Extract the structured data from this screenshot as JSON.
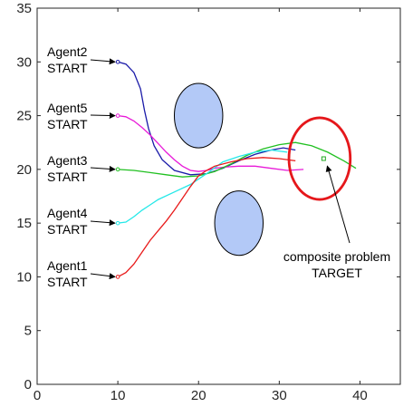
{
  "chart_data": {
    "type": "line",
    "title": "",
    "xlabel": "",
    "ylabel": "",
    "xlim": [
      0,
      45
    ],
    "ylim": [
      0,
      35
    ],
    "xticks": [
      0,
      10,
      20,
      30,
      40
    ],
    "yticks": [
      0,
      5,
      10,
      15,
      20,
      25,
      30,
      35
    ],
    "grid": false,
    "legend": "none",
    "obstacles": [
      {
        "cx": 20,
        "cy": 25,
        "rx": 3.0,
        "ry": 3.0,
        "color": "#b3c9f7"
      },
      {
        "cx": 25,
        "cy": 15,
        "rx": 3.0,
        "ry": 3.0,
        "color": "#b3c9f7"
      }
    ],
    "target_circle": {
      "cx": 35,
      "cy": 21,
      "rx": 3.8,
      "ry": 3.8,
      "color": "#e5171b"
    },
    "target_point": {
      "x": 35.5,
      "y": 21.0,
      "color": "#21a821"
    },
    "series": [
      {
        "color": "#1a1aa8",
        "points": [
          [
            10,
            30
          ],
          [
            11,
            29.8
          ],
          [
            12,
            29
          ],
          [
            12.8,
            27.5
          ],
          [
            13.3,
            25.5
          ],
          [
            13.8,
            23.8
          ],
          [
            14.5,
            22.2
          ],
          [
            15.5,
            20.9
          ],
          [
            17,
            19.9
          ],
          [
            19,
            19.5
          ],
          [
            21,
            19.6
          ],
          [
            23,
            20.1
          ],
          [
            25,
            20.8
          ],
          [
            27,
            21.4
          ],
          [
            29,
            21.8
          ],
          [
            30.5,
            22.0
          ],
          [
            32,
            21.8
          ]
        ]
      },
      {
        "color": "#e81ad8",
        "points": [
          [
            10,
            25
          ],
          [
            11,
            24.9
          ],
          [
            12,
            24.5
          ],
          [
            13,
            23.9
          ],
          [
            14,
            23.2
          ],
          [
            15,
            22.4
          ],
          [
            16,
            21.6
          ],
          [
            17,
            20.9
          ],
          [
            18,
            20.3
          ],
          [
            19,
            19.9
          ],
          [
            20,
            19.8
          ],
          [
            21,
            19.9
          ],
          [
            22,
            20.1
          ],
          [
            23,
            20.2
          ],
          [
            25,
            20.3
          ],
          [
            27,
            20.3
          ],
          [
            29,
            20.1
          ],
          [
            31,
            19.9
          ],
          [
            33,
            20.0
          ]
        ]
      },
      {
        "color": "#21c021",
        "points": [
          [
            10,
            20
          ],
          [
            12,
            19.9
          ],
          [
            14,
            19.7
          ],
          [
            16,
            19.5
          ],
          [
            18,
            19.3
          ],
          [
            20,
            19.4
          ],
          [
            22,
            19.8
          ],
          [
            24,
            20.5
          ],
          [
            26,
            21.3
          ],
          [
            28,
            21.9
          ],
          [
            30,
            22.3
          ],
          [
            32,
            22.5
          ],
          [
            34,
            22.2
          ],
          [
            36,
            21.6
          ],
          [
            38,
            20.8
          ],
          [
            39.5,
            20.1
          ]
        ]
      },
      {
        "color": "#25e8e8",
        "points": [
          [
            10,
            15
          ],
          [
            11,
            15.1
          ],
          [
            12,
            15.6
          ],
          [
            13,
            16.2
          ],
          [
            14,
            16.7
          ],
          [
            15,
            17.2
          ],
          [
            17,
            17.9
          ],
          [
            19,
            18.6
          ],
          [
            21,
            19.6
          ],
          [
            23,
            20.7
          ],
          [
            25,
            21.2
          ],
          [
            27,
            21.6
          ],
          [
            29,
            21.8
          ],
          [
            31,
            21.6
          ]
        ]
      },
      {
        "color": "#e81a1a",
        "points": [
          [
            10,
            10
          ],
          [
            11,
            10.4
          ],
          [
            12,
            11.2
          ],
          [
            13,
            12.3
          ],
          [
            14,
            13.4
          ],
          [
            15,
            14.3
          ],
          [
            16,
            15.2
          ],
          [
            17,
            16.2
          ],
          [
            18,
            17.3
          ],
          [
            19,
            18.4
          ],
          [
            20,
            19.4
          ],
          [
            21,
            19.9
          ],
          [
            22,
            20.3
          ],
          [
            24,
            20.7
          ],
          [
            26,
            21.0
          ],
          [
            28,
            21.1
          ],
          [
            30,
            21.0
          ],
          [
            32,
            20.8
          ]
        ]
      }
    ],
    "annotations": [
      {
        "lines": [
          "Agent2",
          "START"
        ],
        "x": 10,
        "y": 30
      },
      {
        "lines": [
          "Agent5",
          "START"
        ],
        "x": 10,
        "y": 25
      },
      {
        "lines": [
          "Agent3",
          "START"
        ],
        "x": 10,
        "y": 20
      },
      {
        "lines": [
          "Agent4",
          "START"
        ],
        "x": 10,
        "y": 15
      },
      {
        "lines": [
          "Agent1",
          "START"
        ],
        "x": 10,
        "y": 10
      },
      {
        "lines": [
          "composite problem",
          "TARGET"
        ],
        "x": 35.5,
        "y": 21.0
      }
    ]
  }
}
